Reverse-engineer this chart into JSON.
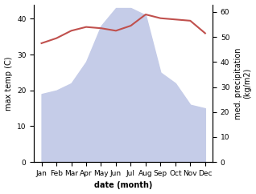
{
  "months": [
    "Jan",
    "Feb",
    "Mar",
    "Apr",
    "May",
    "Jun",
    "Jul",
    "Aug",
    "Sep",
    "Oct",
    "Nov",
    "Dec"
  ],
  "precipitation": [
    19,
    20,
    22,
    28,
    38,
    43,
    43,
    41,
    25,
    22,
    16,
    15
  ],
  "temperature": [
    47.5,
    49.5,
    52.5,
    54.0,
    53.5,
    52.5,
    54.5,
    59.0,
    57.5,
    57.0,
    56.5,
    51.5
  ],
  "temp_color": "#c0504d",
  "precip_fill_color": "#c5cce8",
  "ylabel_left": "max temp (C)",
  "ylabel_right": "med. precipitation\n(kg/m2)",
  "xlabel": "date (month)",
  "ylim_left": [
    0,
    44
  ],
  "ylim_right": [
    0,
    63
  ],
  "yticks_left": [
    0,
    10,
    20,
    30,
    40
  ],
  "yticks_right": [
    0,
    10,
    20,
    30,
    40,
    50,
    60
  ],
  "label_fontsize": 7,
  "tick_fontsize": 6.5
}
